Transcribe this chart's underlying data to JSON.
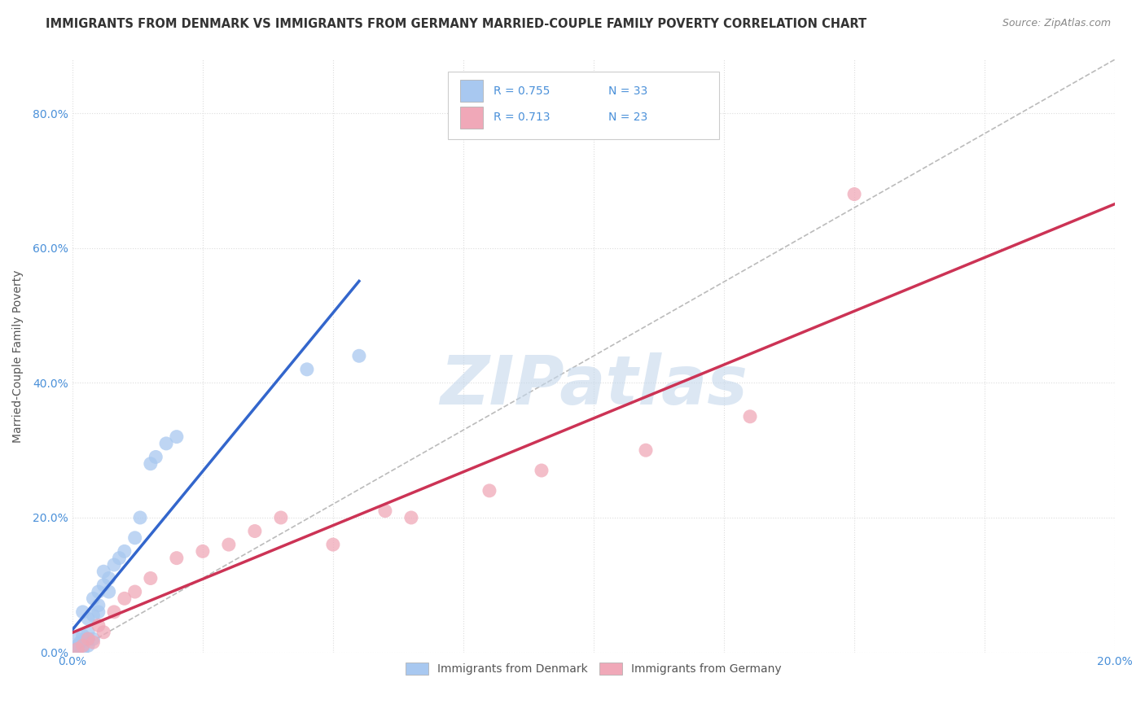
{
  "title": "IMMIGRANTS FROM DENMARK VS IMMIGRANTS FROM GERMANY MARRIED-COUPLE FAMILY POVERTY CORRELATION CHART",
  "source": "Source: ZipAtlas.com",
  "ylabel": "Married-Couple Family Poverty",
  "legend_denmark": "Immigrants from Denmark",
  "legend_germany": "Immigrants from Germany",
  "R_denmark": 0.755,
  "N_denmark": 33,
  "R_germany": 0.713,
  "N_germany": 23,
  "color_denmark": "#A8C8F0",
  "color_denmark_line": "#3366CC",
  "color_germany": "#F0A8B8",
  "color_germany_line": "#CC3355",
  "color_ref_line": "#BBBBBB",
  "xlim": [
    0.0,
    0.2
  ],
  "ylim": [
    0.0,
    0.88
  ],
  "background": "#FFFFFF",
  "grid_color": "#DDDDDD",
  "watermark": "ZIPatlas",
  "watermark_color": "#C5D8EC",
  "title_color": "#333333",
  "axis_label_color": "#555555",
  "tick_color": "#4A90D9",
  "denmark_x": [
    0.0005,
    0.001,
    0.001,
    0.0015,
    0.002,
    0.002,
    0.002,
    0.0025,
    0.003,
    0.003,
    0.003,
    0.003,
    0.004,
    0.004,
    0.004,
    0.005,
    0.005,
    0.005,
    0.006,
    0.006,
    0.007,
    0.007,
    0.008,
    0.009,
    0.01,
    0.012,
    0.013,
    0.015,
    0.016,
    0.018,
    0.02,
    0.045,
    0.055
  ],
  "denmark_y": [
    0.005,
    0.01,
    0.02,
    0.015,
    0.005,
    0.025,
    0.06,
    0.02,
    0.01,
    0.02,
    0.03,
    0.05,
    0.02,
    0.055,
    0.08,
    0.06,
    0.07,
    0.09,
    0.1,
    0.12,
    0.09,
    0.11,
    0.13,
    0.14,
    0.15,
    0.17,
    0.2,
    0.28,
    0.29,
    0.31,
    0.32,
    0.42,
    0.44
  ],
  "germany_x": [
    0.001,
    0.002,
    0.003,
    0.004,
    0.005,
    0.006,
    0.008,
    0.01,
    0.012,
    0.015,
    0.02,
    0.025,
    0.03,
    0.035,
    0.04,
    0.05,
    0.06,
    0.065,
    0.08,
    0.09,
    0.11,
    0.13,
    0.15
  ],
  "germany_y": [
    0.005,
    0.01,
    0.02,
    0.015,
    0.04,
    0.03,
    0.06,
    0.08,
    0.09,
    0.11,
    0.14,
    0.15,
    0.16,
    0.18,
    0.2,
    0.16,
    0.21,
    0.2,
    0.24,
    0.27,
    0.3,
    0.35,
    0.68
  ],
  "x_ticks": [
    0.0,
    0.025,
    0.05,
    0.075,
    0.1,
    0.125,
    0.15,
    0.175,
    0.2
  ],
  "y_ticks": [
    0.0,
    0.2,
    0.4,
    0.6,
    0.8
  ]
}
